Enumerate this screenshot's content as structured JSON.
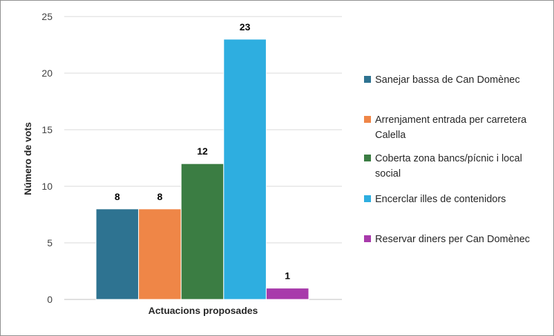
{
  "chart_data": {
    "type": "bar",
    "xlabel": "Actuacions proposades",
    "ylabel": "Número de vots",
    "ylim": [
      0,
      25
    ],
    "yticks": [
      0,
      5,
      10,
      15,
      20,
      25
    ],
    "grid": true,
    "legend_position": "right",
    "series": [
      {
        "name": "Sanejar bassa de Can Domènec",
        "value": 8,
        "color": "#2e7391"
      },
      {
        "name": "Arrenjament entrada per carretera Calella",
        "value": 8,
        "color": "#ef8647"
      },
      {
        "name": "Coberta zona bancs/pícnic i local social",
        "value": 12,
        "color": "#3b7d43"
      },
      {
        "name": "Encerclar illes de contenidors",
        "value": 23,
        "color": "#2eaee0"
      },
      {
        "name": "Reservar diners per Can Domènec",
        "value": 1,
        "color": "#a83aab"
      }
    ]
  }
}
